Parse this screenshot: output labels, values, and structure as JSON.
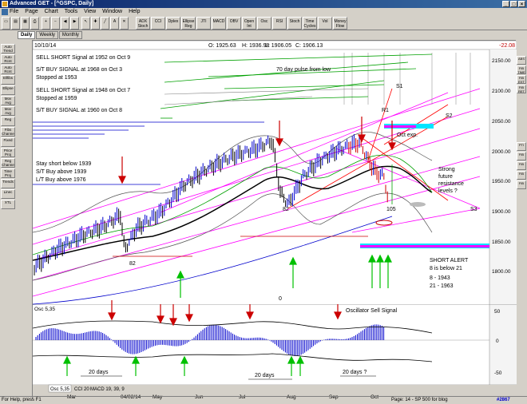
{
  "window": {
    "title": "Advanced GET - [^GSPC, Daily]",
    "controls": [
      "_",
      "□",
      "×"
    ]
  },
  "menu": [
    "File",
    "Page",
    "Chart",
    "Tools",
    "View",
    "Window",
    "Help"
  ],
  "toolbar": {
    "labels": [
      "ADX Stoch",
      "CCI",
      "Dplex",
      "Ellipse Reg",
      "JTI",
      "MACD",
      "OBV",
      "Open Int",
      "Osc",
      "RSI",
      "Stoch",
      "Time Cycles",
      "Vol",
      "Money Flow"
    ]
  },
  "tabs": [
    "Daily",
    "Weekly",
    "Monthly"
  ],
  "lefttools": [
    "Auto Trend",
    "Auto Rcnt",
    "Auto Rcnt",
    "Ellfibs",
    "Ellipse",
    "Mov Avg",
    "Mov Avg",
    "Reg",
    "Fibs Channel",
    "Fixed",
    "Price Proj",
    "Reg Channel",
    "Time Proj",
    "Trends",
    "Linec",
    "XTL"
  ],
  "righttools": [
    "ABS",
    "FIB TIME",
    "FIB EXT",
    "FIB RET",
    "PTI",
    "FIB",
    "FIB",
    "FIB",
    "FIB"
  ],
  "info": {
    "date": "10/10/14",
    "open": "O: 1925.63",
    "high": "H: 1936.98",
    "low": "L: 1906.05",
    "close": "C: 1906.13",
    "change": "-22.08"
  },
  "annotations": {
    "sell1": "SELL SHORT Signal at 1952 on Oct 9",
    "buy1": "S/T BUY SIGNAL at 1968 on Oct 3",
    "stop1": "Stopped at 1953",
    "sell2": "SELL SHORT Signal at 1948 on Oct 7",
    "stop2": "Stopped at 1959",
    "buy2": "S/T BUY SIGNAL at 1960 on Oct 8",
    "pulse": "70 day pulse from low",
    "stay1": "Stay short below 1939",
    "stay2": "S/T Buy above 1939",
    "stay3": "L/T Buy above 1976",
    "oct_exp": "Oct exp.",
    "strong1": "Strong",
    "strong2": "future",
    "strong3": "resistance",
    "strong4": "levels ?",
    "short_alert": "SHORT ALERT",
    "short_alert2": "8 is below 21",
    "ma8": "8  - 1943",
    "ma21": "21 - 1963",
    "s1": "S1",
    "s2": "S2",
    "s3": "S3",
    "r1": "R1",
    "wave82a": "82",
    "wave82b": "82",
    "wave105": "105",
    "wave0": "0",
    "osc_sell": "Oscillator Sell Signal",
    "days1": "20 days",
    "days2": "20 days",
    "days3": "20 days ?"
  },
  "price_axis": [
    "2150.00",
    "2100.00",
    "2050.00",
    "2000.00",
    "1950.00",
    "1900.00",
    "1850.00",
    "1800.00"
  ],
  "osc_axis": [
    "50",
    "0",
    "-50"
  ],
  "osc_label": "Osc 5,35",
  "months": [
    "Mar",
    "04/02/14",
    "May",
    "Jun",
    "Jul",
    "Aug",
    "Sep",
    "Oct"
  ],
  "bottom_tabs": [
    "Osc 5,35",
    "CCI 20",
    "MACD 19, 39, 9"
  ],
  "status": {
    "help": "For Help, press F1",
    "page": "Page: 14 - SP 500 for blog",
    "code": "#2867"
  },
  "colors": {
    "up": "#0000cc",
    "down": "#cc0000",
    "signal": "#008000",
    "magenta": "#ff00ff",
    "cyan": "#00e5ff"
  }
}
